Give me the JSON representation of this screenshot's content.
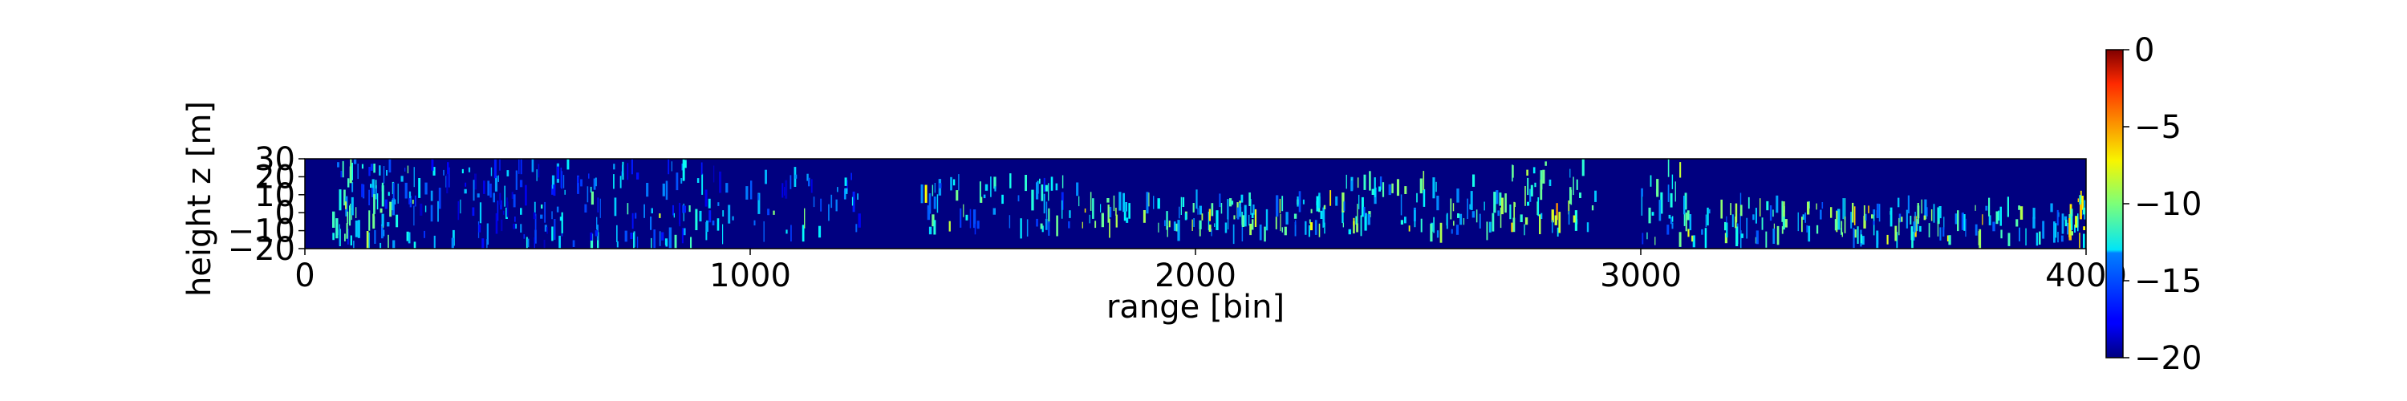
{
  "chart_data": {
    "type": "heatmap",
    "title": "",
    "xlabel": "range [bin]",
    "ylabel": "height z [m]",
    "xlim": [
      0,
      4000
    ],
    "ylim": [
      -20,
      30
    ],
    "xticks": [
      0,
      1000,
      2000,
      3000,
      4000
    ],
    "xtick_labels": [
      "0",
      "1000",
      "2000",
      "3000",
      "4000"
    ],
    "yticks": [
      -20,
      -10,
      0,
      10,
      20,
      30
    ],
    "ytick_labels": [
      "−20",
      "−10",
      "0",
      "10",
      "20",
      "30"
    ],
    "colorbar": {
      "colormap": "jet",
      "range": [
        -20,
        0
      ],
      "ticks": [
        0,
        -5,
        -10,
        -15,
        -20
      ],
      "tick_labels": [
        "0",
        "−5",
        "−10",
        "−15",
        "−20"
      ]
    },
    "background_value": -20,
    "clusters": [
      {
        "x": [
          60,
          200
        ],
        "y": [
          -20,
          30
        ],
        "density": 0.9,
        "level": -13
      },
      {
        "x": [
          200,
          600
        ],
        "y": [
          -20,
          30
        ],
        "density": 0.5,
        "level": -15
      },
      {
        "x": [
          600,
          900
        ],
        "y": [
          -18,
          28
        ],
        "density": 0.45,
        "level": -14
      },
      {
        "x": [
          900,
          1250
        ],
        "y": [
          -12,
          22
        ],
        "density": 0.25,
        "level": -15
      },
      {
        "x": [
          1380,
          1750
        ],
        "y": [
          -10,
          18
        ],
        "density": 0.3,
        "level": -13
      },
      {
        "x": [
          1750,
          2300
        ],
        "y": [
          -12,
          8
        ],
        "density": 0.35,
        "level": -12
      },
      {
        "x": [
          2300,
          2700
        ],
        "y": [
          -12,
          18
        ],
        "density": 0.35,
        "level": -12
      },
      {
        "x": [
          2700,
          2900
        ],
        "y": [
          -12,
          28
        ],
        "density": 0.4,
        "level": -11
      },
      {
        "x": [
          3000,
          3100
        ],
        "y": [
          -16,
          26
        ],
        "density": 0.45,
        "level": -13
      },
      {
        "x": [
          3100,
          3600
        ],
        "y": [
          -16,
          6
        ],
        "density": 0.35,
        "level": -12
      },
      {
        "x": [
          3600,
          4000
        ],
        "y": [
          -16,
          4
        ],
        "density": 0.3,
        "level": -12
      },
      {
        "x": [
          3960,
          4000
        ],
        "y": [
          -18,
          10
        ],
        "density": 0.8,
        "level": -9
      }
    ]
  }
}
